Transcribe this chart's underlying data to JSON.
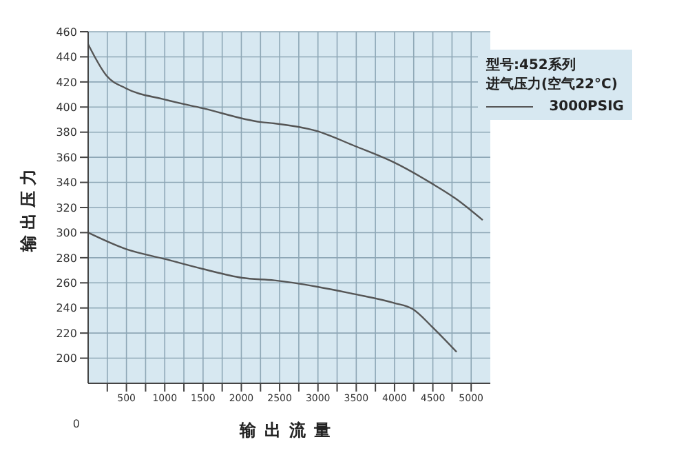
{
  "chart_data": {
    "type": "line",
    "xlabel": "输出流量",
    "ylabel": "输出压力",
    "subtitle": "型号:452系列",
    "legend_title": "进气压力(空气22°C)",
    "annotations": [
      "0"
    ],
    "legend": "top right",
    "grid": true,
    "marker": "none",
    "line_style": "solid",
    "xlim": [
      0,
      5250
    ],
    "xticks": [
      {
        "value": 250,
        "label": null
      },
      500,
      {
        "value": 750,
        "label": null
      },
      1000,
      {
        "value": 1250,
        "label": null
      },
      1500,
      {
        "value": 1750,
        "label": null
      },
      2000,
      {
        "value": 2250,
        "label": null
      },
      2500,
      {
        "value": 2750,
        "label": null
      },
      3000,
      {
        "value": 3250,
        "label": null
      },
      3500,
      {
        "value": 3750,
        "label": null
      },
      4000,
      {
        "value": 4250,
        "label": null
      },
      4500,
      {
        "value": 4750,
        "label": null
      },
      5000
    ],
    "ylim": [
      180,
      460
    ],
    "yticks": [
      200,
      220,
      240,
      260,
      280,
      300,
      320,
      340,
      360,
      380,
      400,
      420,
      440,
      460
    ],
    "series": [
      {
        "name": "3000PSIG",
        "color": "#555555",
        "x": [
          0,
          240,
          490,
          1000,
          1500,
          2260,
          2430,
          2980,
          3480,
          3990,
          4490,
          4800,
          5150
        ],
        "values": [
          450,
          425,
          415,
          406,
          399,
          388,
          387,
          381,
          369,
          356,
          339,
          327,
          310
        ]
      },
      {
        "color": "#555555",
        "x": [
          0,
          490,
          1000,
          1500,
          2010,
          2430,
          2980,
          3480,
          3990,
          4240,
          4490,
          4810
        ],
        "values": [
          300,
          287,
          279,
          271,
          264,
          262,
          257,
          251,
          244,
          239,
          225,
          205
        ]
      }
    ]
  }
}
